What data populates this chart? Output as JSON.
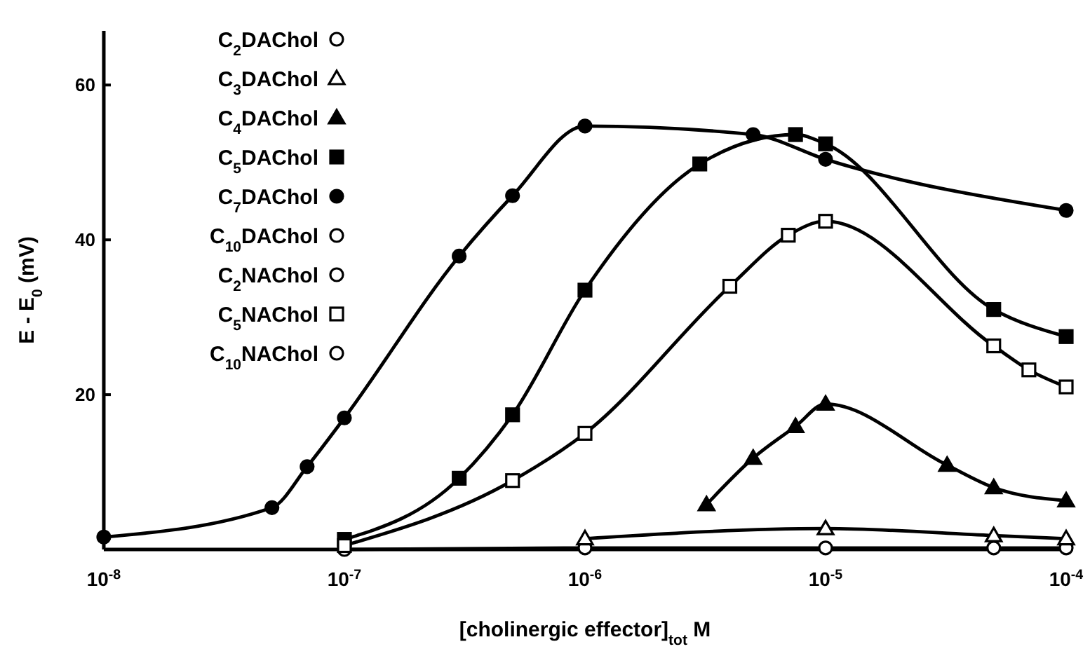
{
  "chart_data": {
    "type": "line",
    "xlabel": "[cholinergic effector]$_{tot}$ M",
    "ylabel": "E - E$_{0}$ (mV)",
    "log": "x",
    "xlim": [
      1e-08,
      0.0001
    ],
    "xticks": [
      {
        "value": 1e-08,
        "label": "10$^{-8}$"
      },
      {
        "value": 1e-07,
        "label": "10$^{-7}$"
      },
      {
        "value": 1e-06,
        "label": "10$^{-6}$"
      },
      {
        "value": 1e-05,
        "label": "10$^{-5}$"
      },
      {
        "value": 0.0001,
        "label": "10$^{-4}$"
      }
    ],
    "ylim": [
      0,
      67
    ],
    "yticks": [
      20,
      40,
      60
    ],
    "grid": false,
    "legend": "top left",
    "line_style": "solid",
    "series": [
      {
        "name": "C$_{2}$DAChol",
        "color": "#000000",
        "marker": "circle",
        "colors": [
          "#ffffff",
          "#ffffff",
          "#ffffff",
          "#ffffff",
          "#ffffff"
        ],
        "x": [
          1e-07,
          1e-06,
          1e-05,
          5e-05,
          0.0001
        ],
        "values": [
          0,
          0.2,
          0.2,
          0.2,
          0.2
        ]
      },
      {
        "name": "C$_{3}$DAChol",
        "color": "#000000",
        "marker": "triangle",
        "colors": [
          "#ffffff",
          "#ffffff",
          "#ffffff",
          "#ffffff"
        ],
        "x": [
          1e-06,
          1e-05,
          5e-05,
          0.0001
        ],
        "values": [
          1.4,
          2.7,
          1.8,
          1.4
        ]
      },
      {
        "name": "C$_{4}$DAChol",
        "color": "#000000",
        "marker": "triangle",
        "x": [
          3.2e-06,
          5e-06,
          7.5e-06,
          1e-05,
          3.2e-05,
          5e-05,
          0.0001
        ],
        "values": [
          5.8,
          11.8,
          15.9,
          18.8,
          10.9,
          8,
          6.3
        ]
      },
      {
        "name": "C$_{5}$DAChol",
        "color": "#000000",
        "marker": "square",
        "x": [
          1e-07,
          3e-07,
          5e-07,
          1e-06,
          3e-06,
          7.5e-06,
          1e-05,
          5e-05,
          0.0001
        ],
        "values": [
          1.3,
          9.2,
          17.4,
          33.5,
          49.8,
          53.6,
          52.4,
          31,
          27.5
        ]
      },
      {
        "name": "C$_{7}$DAChol",
        "color": "#000000",
        "marker": "circle",
        "x": [
          1e-08,
          5e-08,
          7e-08,
          1e-07,
          3e-07,
          5e-07,
          1e-06,
          5e-06,
          1e-05,
          0.0001
        ],
        "values": [
          1.6,
          5.4,
          10.7,
          17,
          37.9,
          45.7,
          54.7,
          53.6,
          50.4,
          43.8
        ]
      },
      {
        "name": "C$_{10}$DAChol",
        "color": "#000000",
        "marker": "circle",
        "colors": [
          "#ffffff"
        ],
        "values": [
          null
        ]
      },
      {
        "name": "C$_{2}$NAChol",
        "color": "#000000",
        "marker": "circle",
        "colors": [
          "#ffffff"
        ],
        "values": [
          null
        ]
      },
      {
        "name": "C$_{5}$NAChol",
        "color": "#000000",
        "marker": "square",
        "colors": [
          "#ffffff",
          "#ffffff",
          "#ffffff",
          "#ffffff",
          "#ffffff",
          "#ffffff",
          "#ffffff",
          "#ffffff",
          "#ffffff"
        ],
        "x": [
          1e-07,
          5e-07,
          1e-06,
          4e-06,
          7e-06,
          1e-05,
          5e-05,
          7e-05,
          0.0001
        ],
        "values": [
          0.5,
          8.9,
          15,
          34,
          40.6,
          42.4,
          26.3,
          23.2,
          21
        ]
      },
      {
        "name": "C$_{10}$NAChol",
        "color": "#000000",
        "marker": "circle",
        "colors": [
          "#ffffff"
        ],
        "values": [
          null
        ]
      }
    ]
  }
}
